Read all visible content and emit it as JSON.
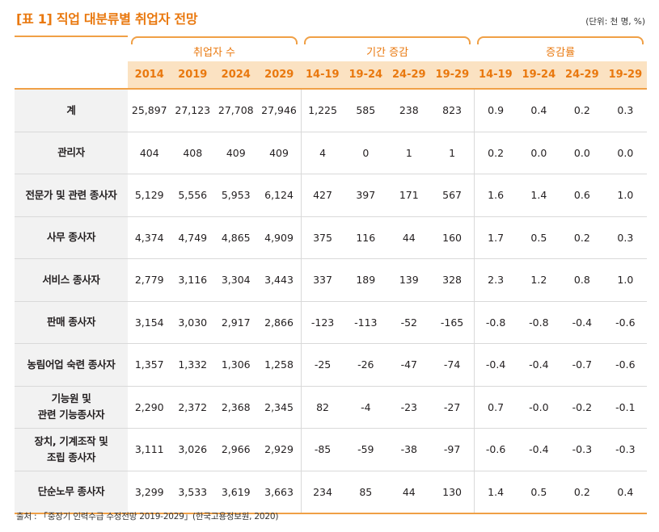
{
  "title": "[표 1] 직업 대분류별 취업자 전망",
  "unit": "(단위: 천 명, %)",
  "source": "출처 : 「중장기 인력수급 수정전망 2019-2029」(한국고용정보원, 2020)",
  "groups": [
    "취업자 수",
    "기간 증감",
    "증감률"
  ],
  "columns": [
    "2014",
    "2019",
    "2024",
    "2029",
    "14-19",
    "19-24",
    "24-29",
    "19-29",
    "14-19",
    "19-24",
    "24-29",
    "19-29"
  ],
  "rows": [
    {
      "label": [
        "계"
      ],
      "values": [
        "25,897",
        "27,123",
        "27,708",
        "27,946",
        "1,225",
        "585",
        "238",
        "823",
        "0.9",
        "0.4",
        "0.2",
        "0.3"
      ]
    },
    {
      "label": [
        "관리자"
      ],
      "values": [
        "404",
        "408",
        "409",
        "409",
        "4",
        "0",
        "1",
        "1",
        "0.2",
        "0.0",
        "0.0",
        "0.0"
      ]
    },
    {
      "label": [
        "전문가 및 관련 종사자"
      ],
      "values": [
        "5,129",
        "5,556",
        "5,953",
        "6,124",
        "427",
        "397",
        "171",
        "567",
        "1.6",
        "1.4",
        "0.6",
        "1.0"
      ]
    },
    {
      "label": [
        "사무 종사자"
      ],
      "values": [
        "4,374",
        "4,749",
        "4,865",
        "4,909",
        "375",
        "116",
        "44",
        "160",
        "1.7",
        "0.5",
        "0.2",
        "0.3"
      ]
    },
    {
      "label": [
        "서비스 종사자"
      ],
      "values": [
        "2,779",
        "3,116",
        "3,304",
        "3,443",
        "337",
        "189",
        "139",
        "328",
        "2.3",
        "1.2",
        "0.8",
        "1.0"
      ]
    },
    {
      "label": [
        "판매 종사자"
      ],
      "values": [
        "3,154",
        "3,030",
        "2,917",
        "2,866",
        "-123",
        "-113",
        "-52",
        "-165",
        "-0.8",
        "-0.8",
        "-0.4",
        "-0.6"
      ]
    },
    {
      "label": [
        "농림어업 숙련 종사자"
      ],
      "values": [
        "1,357",
        "1,332",
        "1,306",
        "1,258",
        "-25",
        "-26",
        "-47",
        "-74",
        "-0.4",
        "-0.4",
        "-0.7",
        "-0.6"
      ]
    },
    {
      "label": [
        "기능원 및",
        "관련 기능종사자"
      ],
      "values": [
        "2,290",
        "2,372",
        "2,368",
        "2,345",
        "82",
        "-4",
        "-23",
        "-27",
        "0.7",
        "-0.0",
        "-0.2",
        "-0.1"
      ]
    },
    {
      "label": [
        "장치, 기계조작 및",
        "조립 종사자"
      ],
      "values": [
        "3,111",
        "3,026",
        "2,966",
        "2,929",
        "-85",
        "-59",
        "-38",
        "-97",
        "-0.6",
        "-0.4",
        "-0.3",
        "-0.3"
      ]
    },
    {
      "label": [
        "단순노무 종사자"
      ],
      "values": [
        "3,299",
        "3,533",
        "3,619",
        "3,663",
        "234",
        "85",
        "44",
        "130",
        "1.4",
        "0.5",
        "0.2",
        "0.4"
      ]
    }
  ],
  "colors": {
    "accent": "#e9780e",
    "header_fill": "#fbe2c2",
    "label_fill": "#f2f2f2",
    "rule": "#f0a046"
  }
}
